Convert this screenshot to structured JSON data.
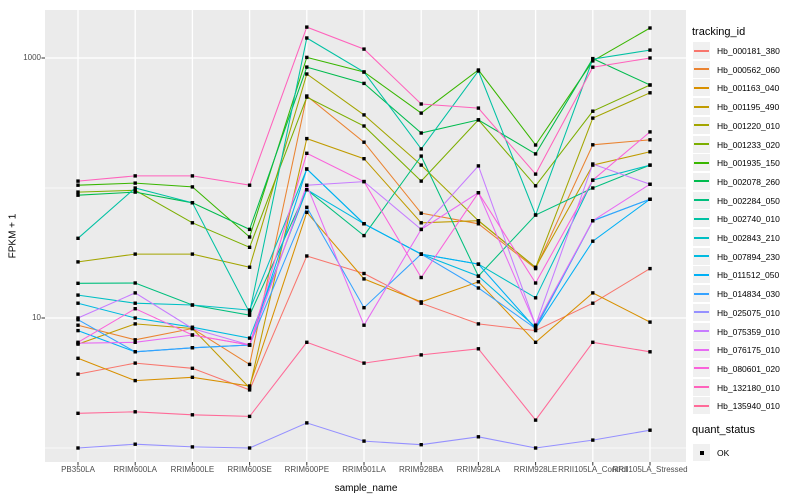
{
  "figure": {
    "panel_bg": "#EBEBEB",
    "grid_color": "#FFFFFF",
    "tick_mark_color": "#333333",
    "tick_text_color": "#4D4D4D",
    "point_color": "#000000",
    "legend_key_bg": "#F0F0F0"
  },
  "y_axis": {
    "title": "FPKM + 1",
    "tick_labels": [
      "1000",
      "10"
    ],
    "tick_values": [
      1000,
      10
    ]
  },
  "x_axis": {
    "title": "sample_name"
  },
  "legend": {
    "tracking_title": "tracking_id",
    "quant_title": "quant_status",
    "quant_items": [
      {
        "label": "OK",
        "shape": "black-square"
      }
    ]
  },
  "chart_data": {
    "type": "line",
    "title": "",
    "xlabel": "sample_name",
    "ylabel": "FPKM + 1",
    "y_scale": "log10",
    "ylim": [
      0.78,
      2300
    ],
    "y_major_gridlines": [
      10,
      1000
    ],
    "y_minor_gridlines": [
      1,
      100
    ],
    "y_labeled_ticks": [
      1000,
      10
    ],
    "grid": "on",
    "legend_position": "right",
    "point_style": "black-square",
    "point_legend_title": "quant_status",
    "point_legend_items": [
      "OK"
    ],
    "categories": [
      "PB350LA",
      "RRIM600LA",
      "RRIM600LE",
      "RRIM600SE",
      "RRIM600PE",
      "RRIM901LA",
      "RRIM928BA",
      "RRIM928LA",
      "RRIM928LE",
      "RRII105LA_Control",
      "RRII105LA_Stressed"
    ],
    "series": [
      {
        "name": "Hb_000181_380",
        "color": "#F8766D",
        "values": [
          3.7,
          4.5,
          4.1,
          2.8,
          30,
          22,
          13,
          9,
          8,
          13,
          24
        ]
      },
      {
        "name": "Hb_000562_060",
        "color": "#EA8331",
        "values": [
          8.8,
          6.8,
          8.3,
          4.4,
          510,
          225,
          64,
          53,
          24,
          215,
          235
        ]
      },
      {
        "name": "Hb_001163_040",
        "color": "#D89000",
        "values": [
          4.9,
          3.3,
          3.5,
          3.0,
          65,
          20,
          13.3,
          19,
          6.5,
          15.6,
          9.3
        ]
      },
      {
        "name": "Hb_001195_490",
        "color": "#C09B00",
        "values": [
          6.3,
          9.0,
          8.3,
          2.9,
          240,
          168,
          54,
          56,
          24.5,
          150,
          190
        ]
      },
      {
        "name": "Hb_001220_010",
        "color": "#A3A500",
        "values": [
          27,
          31,
          31,
          24.6,
          753,
          365,
          150,
          56,
          24.5,
          345,
          540
        ]
      },
      {
        "name": "Hb_001233_020",
        "color": "#7CAE00",
        "values": [
          93,
          96,
          54,
          35,
          500,
          300,
          113,
          334,
          104,
          390,
          620
        ]
      },
      {
        "name": "Hb_001935_150",
        "color": "#39B600",
        "values": [
          105,
          109,
          102,
          42,
          1010,
          780,
          377,
          808,
          214,
          950,
          1700
        ]
      },
      {
        "name": "Hb_002078_260",
        "color": "#00BB4E",
        "values": [
          88,
          93,
          77,
          48,
          851,
          638,
          265,
          334,
          183,
          990,
          620
        ]
      },
      {
        "name": "Hb_002284_050",
        "color": "#00BF7D",
        "values": [
          18.5,
          18.6,
          12.6,
          10.5,
          97,
          43,
          176,
          21,
          62,
          100,
          150
        ]
      },
      {
        "name": "Hb_002740_010",
        "color": "#00C1A3",
        "values": [
          41,
          100,
          77,
          11,
          1425,
          780,
          200,
          795,
          62,
          980,
          1150
        ]
      },
      {
        "name": "Hb_002843_210",
        "color": "#00BFC4",
        "values": [
          15,
          13,
          12.6,
          11.5,
          140,
          53,
          31,
          26,
          14.3,
          115,
          150
        ]
      },
      {
        "name": "Hb_007894_230",
        "color": "#00BAE0",
        "values": [
          13,
          10,
          8.5,
          7,
          97,
          53,
          31,
          21,
          8.5,
          56,
          82
        ]
      },
      {
        "name": "Hb_011512_050",
        "color": "#00B0F6",
        "values": [
          8,
          5.5,
          5.9,
          6.2,
          140,
          53,
          31,
          26,
          8.3,
          39,
          82
        ]
      },
      {
        "name": "Hb_014834_030",
        "color": "#35A2FF",
        "values": [
          9.7,
          5.5,
          5.9,
          6.2,
          71,
          12,
          31,
          17,
          8.3,
          56,
          82
        ]
      },
      {
        "name": "Hb_025075_010",
        "color": "#9590FF",
        "values": [
          1.0,
          1.07,
          1.02,
          1.0,
          1.56,
          1.13,
          1.06,
          1.22,
          1.0,
          1.15,
          1.37
        ]
      },
      {
        "name": "Hb_075359_010",
        "color": "#C77CFF",
        "values": [
          10,
          15.6,
          8.3,
          6.2,
          105,
          112,
          48,
          148,
          8.8,
          153,
          107
        ]
      },
      {
        "name": "Hb_076175_010",
        "color": "#E76BF3",
        "values": [
          6.4,
          6.5,
          7.4,
          6.2,
          105,
          8.8,
          48,
          92,
          8.8,
          56,
          107
        ]
      },
      {
        "name": "Hb_080601_020",
        "color": "#FA62DB",
        "values": [
          6.5,
          11.8,
          7.4,
          6.2,
          185,
          112,
          20.5,
          92,
          18.6,
          115,
          270
        ]
      },
      {
        "name": "Hb_132180_010",
        "color": "#FF62BC",
        "values": [
          113,
          124,
          124,
          105,
          1730,
          1170,
          443,
          412,
          128,
          850,
          1000
        ]
      },
      {
        "name": "Hb_135940_010",
        "color": "#FF6A98",
        "values": [
          1.85,
          1.9,
          1.8,
          1.75,
          6.5,
          4.5,
          5.2,
          5.8,
          1.64,
          6.5,
          5.5
        ]
      }
    ]
  }
}
